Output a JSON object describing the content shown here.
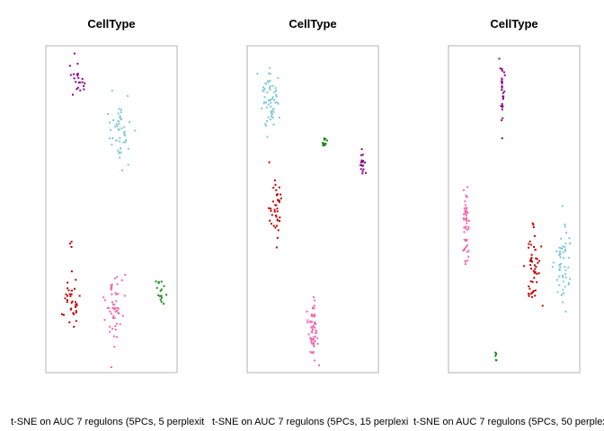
{
  "colors": {
    "purple": "#8B008B",
    "skyblue": "#7EC8D8",
    "green": "#1A8A1A",
    "red": "#C00000",
    "pink": "#F06AAE",
    "frame": "#b3b3b3"
  },
  "chart_data": [
    {
      "type": "scatter",
      "title": "CellType",
      "xlabel": "t-SNE on AUC 7 regulons (5PCs, 5 perplexit",
      "grid": false,
      "legend": "none",
      "series": [
        {
          "color": "purple",
          "clusters": [
            {
              "cx": 0.23,
              "cy": 0.91,
              "sx": 0.06,
              "sy": 0.045,
              "n": 22
            }
          ]
        },
        {
          "color": "skyblue",
          "clusters": [
            {
              "cx": 0.58,
              "cy": 0.73,
              "sx": 0.08,
              "sy": 0.08,
              "n": 50
            }
          ]
        },
        {
          "color": "green",
          "clusters": [
            {
              "cx": 0.91,
              "cy": 0.24,
              "sx": 0.03,
              "sy": 0.035,
              "n": 16
            }
          ]
        },
        {
          "color": "red",
          "clusters": [
            {
              "cx": 0.17,
              "cy": 0.21,
              "sx": 0.06,
              "sy": 0.08,
              "n": 34
            },
            {
              "cx": 0.17,
              "cy": 0.39,
              "sx": 0.01,
              "sy": 0.01,
              "n": 3
            }
          ]
        },
        {
          "color": "pink",
          "clusters": [
            {
              "cx": 0.52,
              "cy": 0.18,
              "sx": 0.06,
              "sy": 0.1,
              "n": 54
            }
          ]
        }
      ]
    },
    {
      "type": "scatter",
      "title": "CellType",
      "xlabel": "t-SNE on AUC 7 regulons (5PCs, 15 perplexi",
      "grid": false,
      "legend": "none",
      "series": [
        {
          "color": "skyblue",
          "clusters": [
            {
              "cx": 0.14,
              "cy": 0.85,
              "sx": 0.06,
              "sy": 0.07,
              "n": 60
            }
          ]
        },
        {
          "color": "green",
          "clusters": [
            {
              "cx": 0.6,
              "cy": 0.71,
              "sx": 0.015,
              "sy": 0.015,
              "n": 14
            }
          ]
        },
        {
          "color": "purple",
          "clusters": [
            {
              "cx": 0.91,
              "cy": 0.65,
              "sx": 0.02,
              "sy": 0.035,
              "n": 20
            }
          ]
        },
        {
          "color": "red",
          "clusters": [
            {
              "cx": 0.19,
              "cy": 0.5,
              "sx": 0.04,
              "sy": 0.07,
              "n": 40
            }
          ]
        },
        {
          "color": "pink",
          "clusters": [
            {
              "cx": 0.5,
              "cy": 0.12,
              "sx": 0.035,
              "sy": 0.08,
              "n": 60
            }
          ]
        }
      ]
    },
    {
      "type": "scatter",
      "title": "CellType",
      "xlabel": "t-SNE on AUC 7 regulons (5PCs, 50 perplexi",
      "grid": false,
      "legend": "none",
      "series": [
        {
          "color": "purple",
          "clusters": [
            {
              "cx": 0.4,
              "cy": 0.88,
              "sx": 0.015,
              "sy": 0.07,
              "n": 30
            }
          ]
        },
        {
          "color": "pink",
          "clusters": [
            {
              "cx": 0.1,
              "cy": 0.44,
              "sx": 0.02,
              "sy": 0.1,
              "n": 55
            }
          ]
        },
        {
          "color": "red",
          "clusters": [
            {
              "cx": 0.66,
              "cy": 0.32,
              "sx": 0.05,
              "sy": 0.1,
              "n": 50
            }
          ]
        },
        {
          "color": "skyblue",
          "clusters": [
            {
              "cx": 0.9,
              "cy": 0.35,
              "sx": 0.05,
              "sy": 0.12,
              "n": 55
            }
          ]
        },
        {
          "color": "green",
          "clusters": [
            {
              "cx": 0.35,
              "cy": 0.04,
              "sx": 0.005,
              "sy": 0.015,
              "n": 6
            }
          ]
        }
      ]
    }
  ]
}
